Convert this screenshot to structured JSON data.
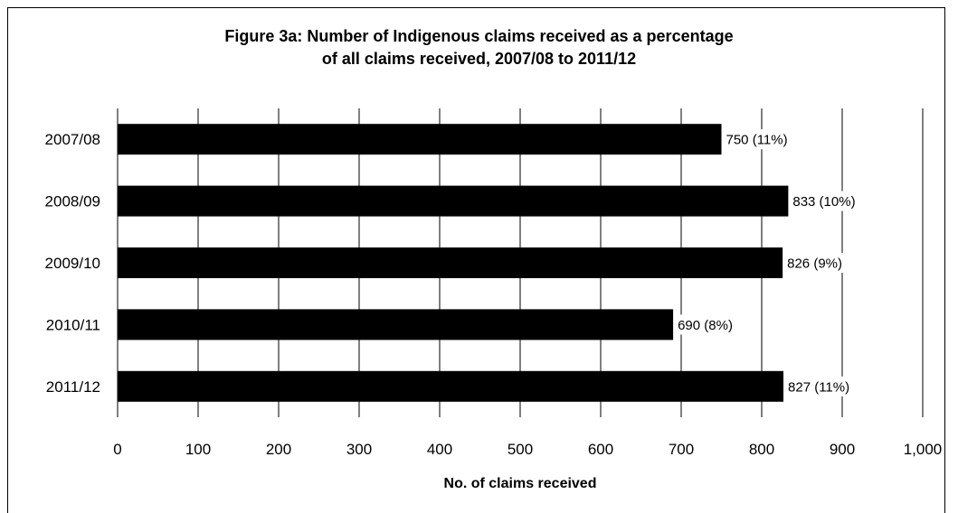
{
  "chart_data": {
    "type": "bar",
    "orientation": "horizontal",
    "title_lines": [
      "Figure 3a: Number of Indigenous claims received as a percentage",
      "of all claims received, 2007/08 to 2011/12"
    ],
    "xlabel": "No. of claims received",
    "ylabel": "",
    "categories": [
      "2007/08",
      "2008/09",
      "2009/10",
      "2010/11",
      "2011/12"
    ],
    "values": [
      750,
      833,
      826,
      690,
      827
    ],
    "data_labels": [
      "750 (11%)",
      "833 (10%)",
      "826 (9%)",
      "690 (8%)",
      "827 (11%)"
    ],
    "xlim": [
      0,
      1000
    ],
    "xticks": [
      0,
      100,
      200,
      300,
      400,
      500,
      600,
      700,
      800,
      900,
      1000
    ],
    "xtick_labels": [
      "0",
      "100",
      "200",
      "300",
      "400",
      "500",
      "600",
      "700",
      "800",
      "900",
      "1,000"
    ],
    "grid": "vertical",
    "legend": "none",
    "bar_color": "#000000",
    "grid_color": "#000000"
  }
}
